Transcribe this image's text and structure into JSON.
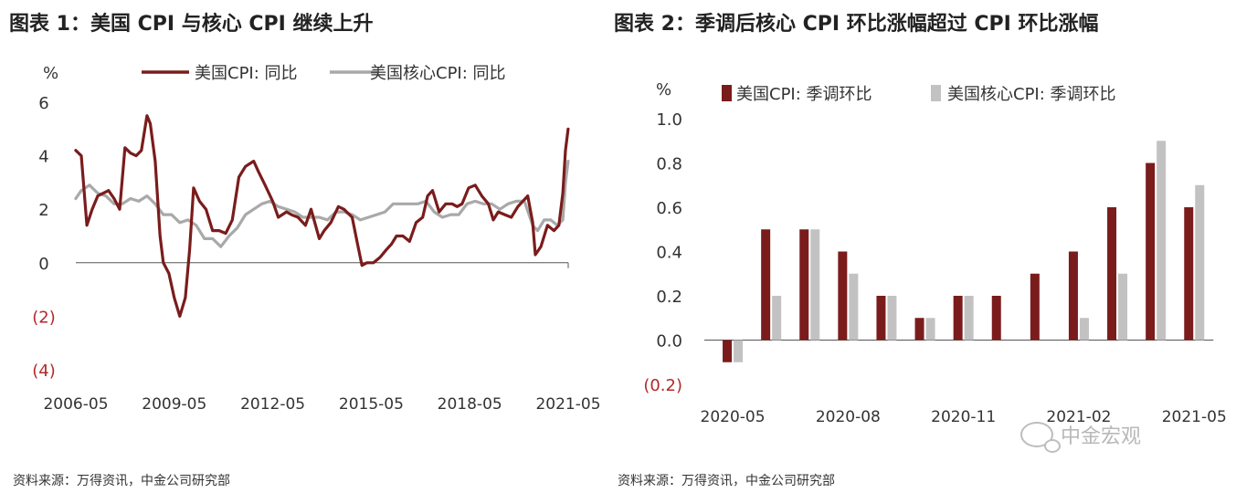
{
  "chart_data": [
    {
      "type": "line",
      "title": "图表 1：美国 CPI 与核心 CPI 继续上升",
      "source": "资料来源：万得资讯，中金公司研究部",
      "ylabel": "%",
      "ylim": [
        -4,
        6
      ],
      "yticks": [
        6,
        4,
        2,
        0,
        -2,
        -4
      ],
      "ytick_labels": [
        "6",
        "4",
        "2",
        "0",
        "(2)",
        "(4)"
      ],
      "xlim": [
        2006.333,
        2021.333
      ],
      "xticks": [
        2006.333,
        2009.333,
        2012.333,
        2015.333,
        2018.333,
        2021.333
      ],
      "xtick_labels": [
        "2006-05",
        "2009-05",
        "2012-05",
        "2015-05",
        "2018-05",
        "2021-05"
      ],
      "legend_position": "top",
      "series": [
        {
          "name": "美国CPI: 同比",
          "color": "#7a1c1c",
          "x": [
            2006.33,
            2006.5,
            2006.67,
            2006.83,
            2007.0,
            2007.17,
            2007.33,
            2007.5,
            2007.67,
            2007.83,
            2008.0,
            2008.17,
            2008.33,
            2008.5,
            2008.6,
            2008.75,
            2008.9,
            2009.0,
            2009.17,
            2009.33,
            2009.5,
            2009.67,
            2009.8,
            2009.92,
            2010.1,
            2010.3,
            2010.5,
            2010.7,
            2010.9,
            2011.1,
            2011.3,
            2011.5,
            2011.75,
            2011.9,
            2012.1,
            2012.33,
            2012.5,
            2012.75,
            2012.9,
            2013.1,
            2013.33,
            2013.5,
            2013.75,
            2013.9,
            2014.1,
            2014.33,
            2014.5,
            2014.75,
            2014.9,
            2015.05,
            2015.2,
            2015.4,
            2015.6,
            2015.8,
            2015.95,
            2016.1,
            2016.3,
            2016.5,
            2016.7,
            2016.9,
            2017.05,
            2017.2,
            2017.4,
            2017.6,
            2017.8,
            2017.95,
            2018.1,
            2018.3,
            2018.5,
            2018.7,
            2018.9,
            2019.05,
            2019.2,
            2019.4,
            2019.6,
            2019.8,
            2019.95,
            2020.1,
            2020.25,
            2020.33,
            2020.5,
            2020.7,
            2020.9,
            2021.05,
            2021.17,
            2021.25,
            2021.33
          ],
          "values": [
            4.2,
            4.0,
            1.4,
            2.0,
            2.5,
            2.6,
            2.7,
            2.4,
            2.0,
            4.3,
            4.1,
            4.0,
            4.2,
            5.5,
            5.2,
            3.8,
            1.0,
            0.0,
            -0.4,
            -1.3,
            -2.0,
            -1.3,
            0.5,
            2.8,
            2.3,
            2.0,
            1.2,
            1.2,
            1.1,
            1.6,
            3.2,
            3.6,
            3.8,
            3.4,
            2.9,
            2.3,
            1.7,
            1.9,
            1.8,
            1.7,
            1.4,
            2.0,
            0.9,
            1.2,
            1.5,
            2.1,
            2.0,
            1.7,
            0.8,
            -0.1,
            0.0,
            0.0,
            0.2,
            0.5,
            0.7,
            1.0,
            1.0,
            0.8,
            1.5,
            1.7,
            2.5,
            2.7,
            1.9,
            2.2,
            2.2,
            2.1,
            2.2,
            2.8,
            2.9,
            2.5,
            2.2,
            1.6,
            1.9,
            1.8,
            1.7,
            2.1,
            2.3,
            2.5,
            1.5,
            0.3,
            0.6,
            1.4,
            1.2,
            1.4,
            2.6,
            4.2,
            5.0
          ]
        },
        {
          "name": "美国核心CPI: 同比",
          "color": "#a9a9a9",
          "x": [
            2006.33,
            2006.5,
            2006.75,
            2007.0,
            2007.25,
            2007.5,
            2007.75,
            2008.0,
            2008.25,
            2008.5,
            2008.75,
            2009.0,
            2009.25,
            2009.5,
            2009.75,
            2010.0,
            2010.25,
            2010.5,
            2010.75,
            2011.0,
            2011.25,
            2011.5,
            2011.75,
            2012.0,
            2012.25,
            2012.5,
            2012.75,
            2013.0,
            2013.25,
            2013.5,
            2013.75,
            2014.0,
            2014.25,
            2014.5,
            2014.75,
            2015.0,
            2015.25,
            2015.5,
            2015.75,
            2016.0,
            2016.25,
            2016.5,
            2016.75,
            2017.0,
            2017.25,
            2017.5,
            2017.75,
            2018.0,
            2018.25,
            2018.5,
            2018.75,
            2019.0,
            2019.25,
            2019.5,
            2019.75,
            2020.0,
            2020.25,
            2020.4,
            2020.6,
            2020.8,
            2021.0,
            2021.17,
            2021.25,
            2021.33
          ],
          "values": [
            2.4,
            2.7,
            2.9,
            2.6,
            2.5,
            2.2,
            2.2,
            2.4,
            2.3,
            2.5,
            2.2,
            1.8,
            1.8,
            1.5,
            1.6,
            1.4,
            0.9,
            0.9,
            0.6,
            1.0,
            1.3,
            1.8,
            2.0,
            2.2,
            2.3,
            2.1,
            2.0,
            1.9,
            1.7,
            1.7,
            1.7,
            1.6,
            1.9,
            1.9,
            1.8,
            1.6,
            1.7,
            1.8,
            1.9,
            2.2,
            2.2,
            2.2,
            2.2,
            2.3,
            1.9,
            1.7,
            1.8,
            1.8,
            2.2,
            2.3,
            2.2,
            2.2,
            2.0,
            2.2,
            2.3,
            2.3,
            1.4,
            1.2,
            1.6,
            1.6,
            1.4,
            1.6,
            3.0,
            3.8
          ]
        }
      ]
    },
    {
      "type": "bar",
      "title": "图表 2：季调后核心 CPI 环比涨幅超过 CPI 环比涨幅",
      "source": "资料来源：万得资讯，中金公司研究部",
      "ylabel": "%",
      "ylim": [
        -0.2,
        1.0
      ],
      "yticks": [
        1.0,
        0.8,
        0.6,
        0.4,
        0.2,
        0.0,
        -0.2
      ],
      "ytick_labels": [
        "1.0",
        "0.8",
        "0.6",
        "0.4",
        "0.2",
        "0.0",
        "(0.2)"
      ],
      "categories": [
        "2020-05",
        "2020-06",
        "2020-07",
        "2020-08",
        "2020-09",
        "2020-10",
        "2020-11",
        "2020-12",
        "2021-01",
        "2021-02",
        "2021-03",
        "2021-04",
        "2021-05"
      ],
      "xtick_labels": [
        "2020-05",
        "",
        "",
        "2020-08",
        "",
        "",
        "2020-11",
        "",
        "",
        "2021-02",
        "",
        "",
        "2021-05"
      ],
      "legend_position": "top",
      "series": [
        {
          "name": "美国CPI: 季调环比",
          "color": "#7a1c1c",
          "values": [
            -0.1,
            0.5,
            0.5,
            0.4,
            0.2,
            0.1,
            0.2,
            0.2,
            0.3,
            0.4,
            0.6,
            0.8,
            0.6
          ]
        },
        {
          "name": "美国核心CPI: 季调环比",
          "color": "#c2c2c2",
          "values": [
            -0.1,
            0.2,
            0.5,
            0.3,
            0.2,
            0.1,
            0.2,
            0.0,
            0.0,
            0.1,
            0.3,
            0.9,
            0.7
          ]
        }
      ]
    }
  ],
  "watermark": "中金宏观"
}
